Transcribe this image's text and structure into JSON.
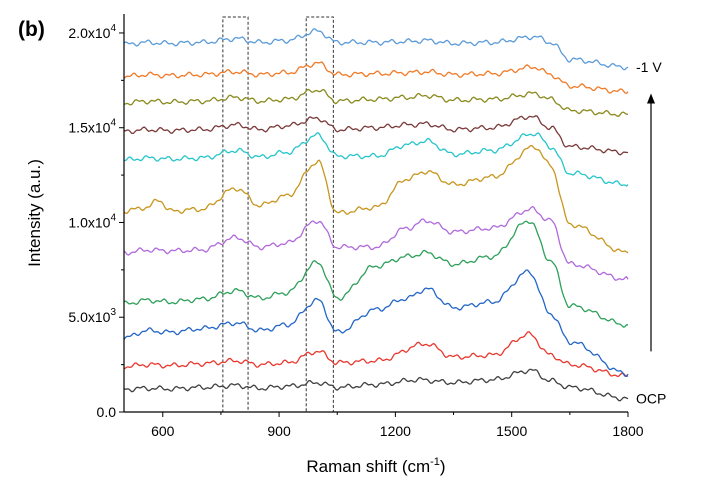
{
  "chart_data": {
    "type": "line",
    "panel_label": "(b)",
    "xlabel": "Raman shift (cm",
    "xlabel_sup": "-1",
    "xlabel_close": ")",
    "ylabel": "Intensity (a.u.)",
    "xlim": [
      500,
      1800
    ],
    "ylim": [
      0,
      21000
    ],
    "x_ticks": [
      {
        "value": 600,
        "label": "600"
      },
      {
        "value": 900,
        "label": "900"
      },
      {
        "value": 1200,
        "label": "1200"
      },
      {
        "value": 1500,
        "label": "1500"
      },
      {
        "value": 1800,
        "label": "1800"
      }
    ],
    "y_ticks": [
      {
        "value": 0,
        "base": "0.0",
        "exp": ""
      },
      {
        "value": 5000,
        "base": "5.0x10",
        "exp": "3"
      },
      {
        "value": 10000,
        "base": "1.0x10",
        "exp": "4"
      },
      {
        "value": 15000,
        "base": "1.5x10",
        "exp": "4"
      },
      {
        "value": 20000,
        "base": "2.0x10",
        "exp": "4"
      }
    ],
    "highlight_regions": [
      [
        755,
        820
      ],
      [
        970,
        1040
      ]
    ],
    "annotations": {
      "top": "-1 V",
      "bottom": "OCP"
    },
    "arrow": {
      "from_series": 0,
      "to_series": 10
    },
    "series": [
      {
        "color": "#404040",
        "points": [
          [
            500,
            1200
          ],
          [
            560,
            1250
          ],
          [
            620,
            1220
          ],
          [
            700,
            1300
          ],
          [
            790,
            1400
          ],
          [
            850,
            1250
          ],
          [
            920,
            1350
          ],
          [
            1000,
            1550
          ],
          [
            1050,
            1300
          ],
          [
            1150,
            1450
          ],
          [
            1260,
            1700
          ],
          [
            1350,
            1550
          ],
          [
            1450,
            1700
          ],
          [
            1550,
            2200
          ],
          [
            1600,
            1650
          ],
          [
            1650,
            1300
          ],
          [
            1800,
            700
          ]
        ]
      },
      {
        "color": "#e8382f",
        "points": [
          [
            500,
            2400
          ],
          [
            560,
            2500
          ],
          [
            620,
            2450
          ],
          [
            700,
            2550
          ],
          [
            790,
            2700
          ],
          [
            850,
            2500
          ],
          [
            920,
            2600
          ],
          [
            1000,
            3200
          ],
          [
            1050,
            2600
          ],
          [
            1150,
            2700
          ],
          [
            1280,
            3600
          ],
          [
            1350,
            2900
          ],
          [
            1450,
            3000
          ],
          [
            1545,
            4100
          ],
          [
            1600,
            3000
          ],
          [
            1650,
            2500
          ],
          [
            1800,
            1900
          ]
        ]
      },
      {
        "color": "#2366c8",
        "points": [
          [
            500,
            3900
          ],
          [
            560,
            4300
          ],
          [
            620,
            4200
          ],
          [
            700,
            4400
          ],
          [
            790,
            4700
          ],
          [
            850,
            4300
          ],
          [
            920,
            4600
          ],
          [
            1000,
            5900
          ],
          [
            1050,
            4200
          ],
          [
            1150,
            5400
          ],
          [
            1230,
            6000
          ],
          [
            1280,
            6500
          ],
          [
            1350,
            5500
          ],
          [
            1450,
            5800
          ],
          [
            1545,
            7400
          ],
          [
            1600,
            5200
          ],
          [
            1650,
            3700
          ],
          [
            1800,
            2000
          ]
        ]
      },
      {
        "color": "#2ea05a",
        "points": [
          [
            500,
            5700
          ],
          [
            560,
            5900
          ],
          [
            620,
            5800
          ],
          [
            700,
            5950
          ],
          [
            790,
            6400
          ],
          [
            850,
            6000
          ],
          [
            920,
            6300
          ],
          [
            1000,
            7900
          ],
          [
            1050,
            6000
          ],
          [
            1150,
            7700
          ],
          [
            1230,
            8200
          ],
          [
            1280,
            8400
          ],
          [
            1350,
            7800
          ],
          [
            1450,
            8200
          ],
          [
            1545,
            10100
          ],
          [
            1600,
            8000
          ],
          [
            1650,
            5600
          ],
          [
            1800,
            4600
          ]
        ]
      },
      {
        "color": "#b06adc",
        "points": [
          [
            500,
            8400
          ],
          [
            560,
            8550
          ],
          [
            620,
            8500
          ],
          [
            700,
            8550
          ],
          [
            790,
            9200
          ],
          [
            850,
            8700
          ],
          [
            920,
            8900
          ],
          [
            1000,
            10100
          ],
          [
            1050,
            8700
          ],
          [
            1150,
            8700
          ],
          [
            1230,
            9700
          ],
          [
            1280,
            10100
          ],
          [
            1350,
            9500
          ],
          [
            1450,
            9700
          ],
          [
            1550,
            10700
          ],
          [
            1600,
            10100
          ],
          [
            1650,
            7800
          ],
          [
            1800,
            7000
          ]
        ]
      },
      {
        "color": "#c8961e",
        "points": [
          [
            500,
            10600
          ],
          [
            560,
            10800
          ],
          [
            590,
            11200
          ],
          [
            620,
            10600
          ],
          [
            700,
            10700
          ],
          [
            790,
            11800
          ],
          [
            850,
            10900
          ],
          [
            920,
            11400
          ],
          [
            1000,
            13200
          ],
          [
            1050,
            10500
          ],
          [
            1150,
            10800
          ],
          [
            1230,
            12300
          ],
          [
            1280,
            12700
          ],
          [
            1350,
            12000
          ],
          [
            1450,
            12400
          ],
          [
            1560,
            14000
          ],
          [
            1600,
            13000
          ],
          [
            1650,
            9900
          ],
          [
            1800,
            8400
          ]
        ]
      },
      {
        "color": "#26c5cc",
        "points": [
          [
            500,
            13300
          ],
          [
            560,
            13400
          ],
          [
            620,
            13350
          ],
          [
            700,
            13400
          ],
          [
            790,
            13800
          ],
          [
            850,
            13450
          ],
          [
            920,
            13700
          ],
          [
            1000,
            14600
          ],
          [
            1050,
            13500
          ],
          [
            1150,
            13500
          ],
          [
            1230,
            14100
          ],
          [
            1280,
            14300
          ],
          [
            1350,
            13600
          ],
          [
            1450,
            13800
          ],
          [
            1560,
            14700
          ],
          [
            1600,
            14000
          ],
          [
            1650,
            12600
          ],
          [
            1800,
            12000
          ]
        ]
      },
      {
        "color": "#7a3a3a",
        "points": [
          [
            500,
            14800
          ],
          [
            560,
            14900
          ],
          [
            620,
            14850
          ],
          [
            700,
            14900
          ],
          [
            790,
            15150
          ],
          [
            850,
            14900
          ],
          [
            920,
            15100
          ],
          [
            1000,
            15500
          ],
          [
            1050,
            14900
          ],
          [
            1150,
            15000
          ],
          [
            1230,
            15150
          ],
          [
            1280,
            15200
          ],
          [
            1350,
            14900
          ],
          [
            1450,
            15000
          ],
          [
            1550,
            15600
          ],
          [
            1600,
            15000
          ],
          [
            1650,
            14000
          ],
          [
            1800,
            13700
          ]
        ]
      },
      {
        "color": "#8a8a1e",
        "points": [
          [
            500,
            16300
          ],
          [
            560,
            16400
          ],
          [
            620,
            16350
          ],
          [
            700,
            16400
          ],
          [
            790,
            16600
          ],
          [
            850,
            16400
          ],
          [
            920,
            16500
          ],
          [
            1000,
            17000
          ],
          [
            1050,
            16400
          ],
          [
            1150,
            16500
          ],
          [
            1230,
            16600
          ],
          [
            1280,
            16700
          ],
          [
            1350,
            16450
          ],
          [
            1450,
            16500
          ],
          [
            1560,
            16800
          ],
          [
            1600,
            16500
          ],
          [
            1650,
            15900
          ],
          [
            1800,
            15700
          ]
        ]
      },
      {
        "color": "#f07a26",
        "points": [
          [
            500,
            17700
          ],
          [
            560,
            17800
          ],
          [
            620,
            17750
          ],
          [
            700,
            17800
          ],
          [
            790,
            17950
          ],
          [
            850,
            17800
          ],
          [
            920,
            17900
          ],
          [
            1000,
            18400
          ],
          [
            1050,
            17800
          ],
          [
            1150,
            17850
          ],
          [
            1230,
            17900
          ],
          [
            1280,
            17950
          ],
          [
            1350,
            17800
          ],
          [
            1450,
            17850
          ],
          [
            1560,
            18200
          ],
          [
            1600,
            17800
          ],
          [
            1650,
            17200
          ],
          [
            1800,
            16900
          ]
        ]
      },
      {
        "color": "#5b9bd9",
        "points": [
          [
            500,
            19400
          ],
          [
            560,
            19500
          ],
          [
            620,
            19450
          ],
          [
            700,
            19500
          ],
          [
            790,
            19700
          ],
          [
            850,
            19500
          ],
          [
            920,
            19600
          ],
          [
            1000,
            20100
          ],
          [
            1050,
            19500
          ],
          [
            1150,
            19500
          ],
          [
            1230,
            19550
          ],
          [
            1280,
            19600
          ],
          [
            1350,
            19450
          ],
          [
            1450,
            19500
          ],
          [
            1560,
            19800
          ],
          [
            1600,
            19500
          ],
          [
            1650,
            18600
          ],
          [
            1800,
            18200
          ]
        ]
      }
    ]
  }
}
